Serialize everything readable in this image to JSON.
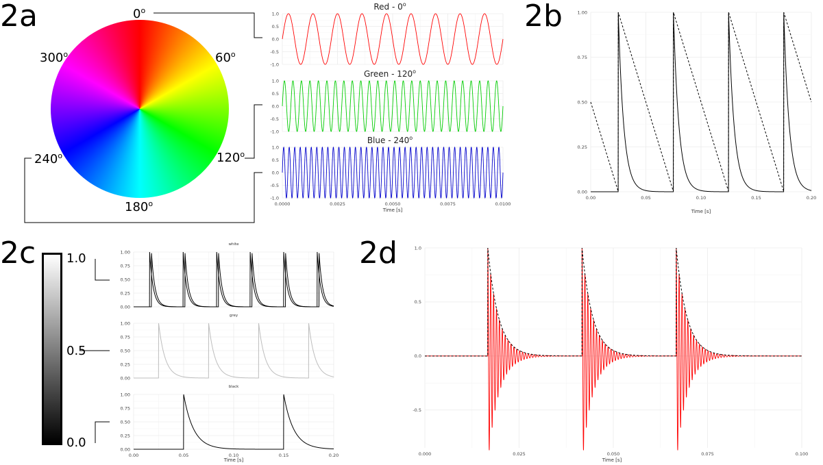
{
  "panel_labels": {
    "a": "2a",
    "b": "2b",
    "c": "2c",
    "d": "2d"
  },
  "color_wheel": {
    "angle_labels": [
      "0",
      "60",
      "120",
      "180",
      "240",
      "300"
    ],
    "degree_symbol": "o",
    "colors": {
      "red": "#ff0000",
      "yellow": "#ffff00",
      "green": "#00ff00",
      "cyan": "#00ffff",
      "blue": "#0000ff",
      "magenta": "#ff00ff"
    }
  },
  "grayscale_bar": {
    "tick_labels": [
      "1.0",
      "0.5",
      "0.0"
    ]
  },
  "chart_data": [
    {
      "id": "2a-sines",
      "type": "line",
      "xlabel": "Time [s]",
      "xlim": [
        0,
        0.01
      ],
      "x_ticks": [
        "0.0000",
        "0.0025",
        "0.0050",
        "0.0075",
        "0.0100"
      ],
      "ylim": [
        -1,
        1
      ],
      "y_ticks": [
        "-1.0",
        "-0.5",
        "0.0",
        "0.5",
        "1.0"
      ],
      "grid": true,
      "facets": [
        {
          "title": "Red - 0",
          "title_suffix": "o",
          "color": "#ff0000",
          "frequency_hz": 900,
          "waveform": "sine"
        },
        {
          "title": "Green - 120",
          "title_suffix": "o",
          "color": "#00cc00",
          "frequency_hz": 2600,
          "waveform": "sine"
        },
        {
          "title": "Blue - 240",
          "title_suffix": "o",
          "color": "#0000cc",
          "frequency_hz": 4000,
          "waveform": "sine"
        }
      ]
    },
    {
      "id": "2b",
      "type": "line",
      "xlabel": "Time [s]",
      "xlim": [
        0,
        0.2
      ],
      "x_ticks": [
        "0.00",
        "0.05",
        "0.10",
        "0.15",
        "0.20"
      ],
      "ylim": [
        0,
        1
      ],
      "y_ticks": [
        "0.00",
        "0.25",
        "0.50",
        "0.75",
        "1.00"
      ],
      "grid": true,
      "series": [
        {
          "style": "dashed",
          "color": "#000000",
          "waveform": "sawtooth",
          "period": 0.05,
          "reset_times": [
            0.025,
            0.075,
            0.125,
            0.175
          ],
          "start_value": 0.5
        },
        {
          "style": "solid",
          "color": "#000000",
          "waveform": "decay",
          "onsets": [
            0.025,
            0.075,
            0.125,
            0.175
          ],
          "decay_constant": 0.005
        }
      ]
    },
    {
      "id": "2c",
      "type": "line",
      "xlabel": "Time [s]",
      "xlim": [
        0,
        0.2
      ],
      "x_ticks": [
        "0.00",
        "0.05",
        "0.10",
        "0.15",
        "0.20"
      ],
      "ylim": [
        0,
        1
      ],
      "y_ticks": [
        "0.00",
        "0.25",
        "0.50",
        "0.75",
        "1.00"
      ],
      "grid": true,
      "facets": [
        {
          "title": "white",
          "color": "#000000",
          "onsets": [
            0.016,
            0.0495,
            0.083,
            0.1165,
            0.15,
            0.1835
          ],
          "decay_constant": 0.0035,
          "double_line": true
        },
        {
          "title": "grey",
          "color": "#bdbdbd",
          "onsets": [
            0.025,
            0.075,
            0.125,
            0.175
          ],
          "decay_constant": 0.0065,
          "double_line": false
        },
        {
          "title": "black",
          "color": "#000000",
          "onsets": [
            0.05,
            0.15
          ],
          "decay_constant": 0.01,
          "double_line": false
        }
      ]
    },
    {
      "id": "2d",
      "type": "line",
      "xlabel": "Time [s]",
      "xlim": [
        0,
        0.1
      ],
      "x_ticks": [
        "0.000",
        "0.025",
        "0.050",
        "0.075",
        "0.100"
      ],
      "ylim": [
        -0.85,
        1
      ],
      "y_ticks": [
        "-0.5",
        "0.0",
        "0.5",
        "1.0"
      ],
      "grid": true,
      "series": [
        {
          "style": "solid",
          "color": "#ff0000",
          "waveform": "damped_oscillation",
          "onsets": [
            0.0167,
            0.0417,
            0.0667
          ],
          "decay_constant": 0.0028,
          "frequency_hz": 1300
        },
        {
          "style": "dashed",
          "color": "#000000",
          "waveform": "envelope",
          "onsets": [
            0.0167,
            0.0417,
            0.0667
          ],
          "decay_constant": 0.0028
        }
      ]
    }
  ]
}
